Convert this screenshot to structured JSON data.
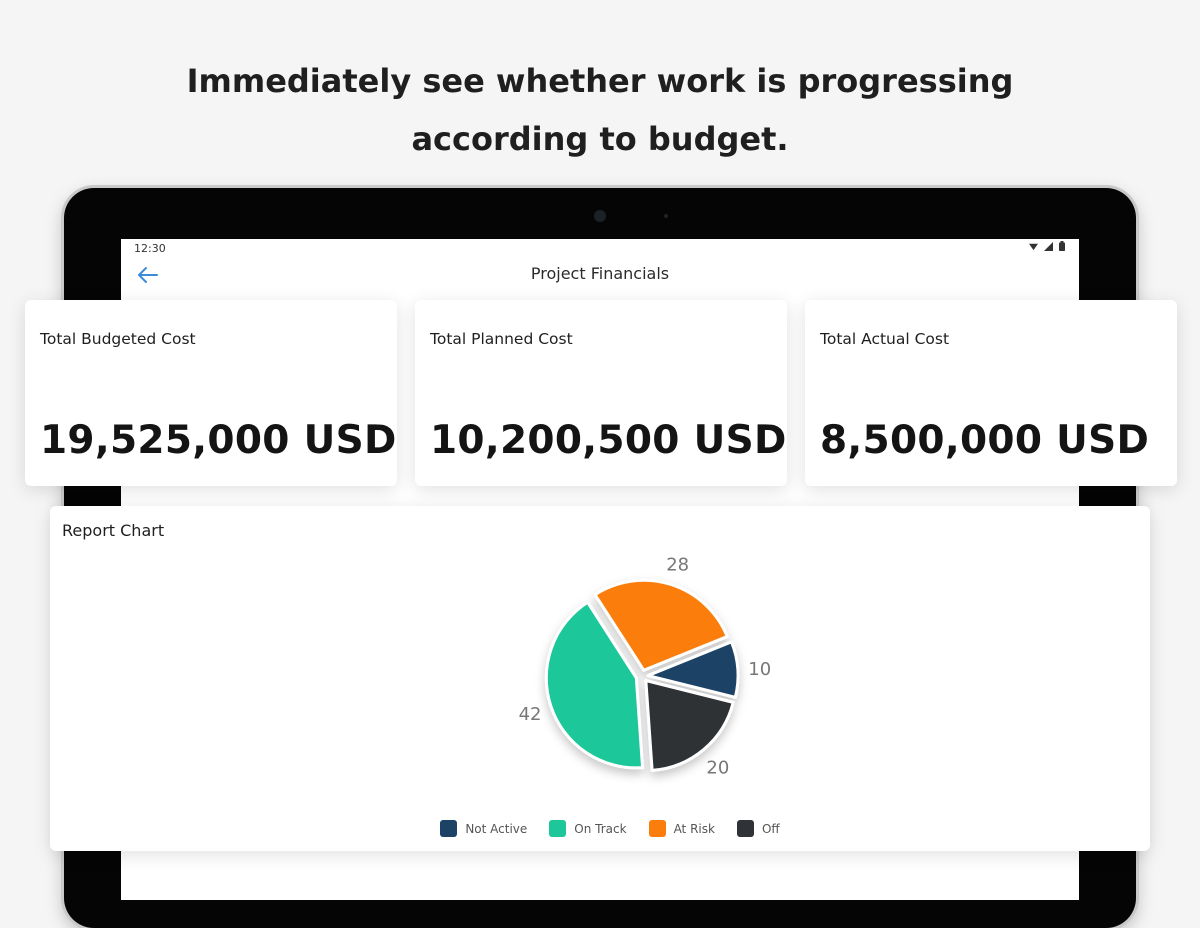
{
  "headline": {
    "line1": "Immediately see whether work is progressing",
    "line2": "according to budget."
  },
  "status_bar": {
    "time": "12:30",
    "icons": [
      "wifi-icon",
      "signal-icon",
      "battery-icon"
    ]
  },
  "app_bar": {
    "back_icon": "back-arrow-icon",
    "title": "Project Financials"
  },
  "kpis": [
    {
      "label": "Total Budgeted Cost",
      "value": "19,525,000 USD"
    },
    {
      "label": "Total Planned Cost",
      "value": "10,200,500 USD"
    },
    {
      "label": "Total Actual Cost",
      "value": "8,500,000 USD"
    }
  ],
  "report": {
    "title": "Report Chart"
  },
  "chart_data": {
    "type": "pie",
    "categories": [
      "Not Active",
      "Off",
      "On Track",
      "At Risk"
    ],
    "values": [
      10,
      20,
      42,
      28
    ],
    "colors": [
      "#1c4266",
      "#2f3236",
      "#1dc79a",
      "#fb7e0c"
    ],
    "legend_order": [
      "Not Active",
      "On Track",
      "At Risk",
      "Off"
    ],
    "legend_colors": [
      "#1c4266",
      "#1dc79a",
      "#fb7e0c",
      "#2f3236"
    ],
    "data_labels": [
      "10",
      "20",
      "42",
      "28"
    ],
    "legend_position": "bottom"
  },
  "colors": {
    "accent": "#3d8bd6",
    "background": "#f5f5f5",
    "device_bezel": "#050505"
  }
}
